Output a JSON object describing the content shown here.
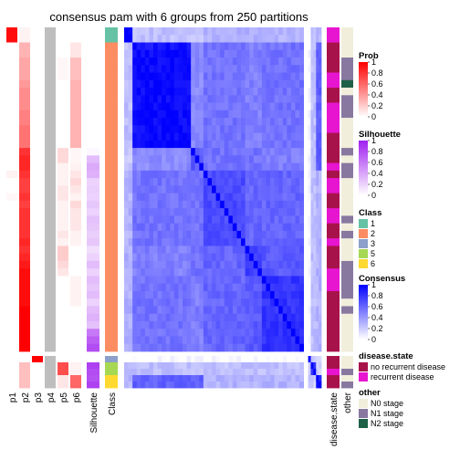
{
  "chart_data": {
    "type": "heatmap",
    "title": "consensus pam with 6 groups from 250 partitions",
    "n_samples": 48,
    "left_columns": [
      "p1",
      "p2",
      "p3",
      "p4",
      "p5",
      "p6",
      "Silhouette",
      "Class"
    ],
    "right_columns": [
      "disease.state",
      "other"
    ],
    "legends": {
      "prob": {
        "title": "Prob",
        "ticks": [
          "1",
          "0.8",
          "0.6",
          "0.4",
          "0.2",
          "0"
        ],
        "colors": [
          "#FF0000",
          "#ffffff"
        ]
      },
      "silhouette": {
        "title": "Silhouette",
        "ticks": [
          "1",
          "0.8",
          "0.6",
          "0.4",
          "0.2",
          "0"
        ],
        "colors": [
          "#A020F0",
          "#ffffff"
        ]
      },
      "class": {
        "title": "Class",
        "items": [
          {
            "label": "1",
            "color": "#66C2A5"
          },
          {
            "label": "2",
            "color": "#FC8D62"
          },
          {
            "label": "3",
            "color": "#8DA0CB"
          },
          {
            "label": "5",
            "color": "#A6D854"
          },
          {
            "label": "6",
            "color": "#FFD92F"
          }
        ]
      },
      "consensus": {
        "title": "Consensus",
        "ticks": [
          "1",
          "0.8",
          "0.6",
          "0.4",
          "0.2",
          "0"
        ],
        "colors": [
          "#0000FF",
          "#ffffff"
        ]
      },
      "disease_state": {
        "title": "disease.state",
        "items": [
          {
            "label": "no recurrent disease",
            "color": "#A8124A"
          },
          {
            "label": "recurrent disease",
            "color": "#E815D0"
          }
        ]
      },
      "other": {
        "title": "other",
        "items": [
          {
            "label": "N0 stage",
            "color": "#F1EFDC"
          },
          {
            "label": "N1 stage",
            "color": "#8878A0"
          },
          {
            "label": "N2 stage",
            "color": "#1F6048"
          }
        ]
      }
    },
    "class_order": [
      1,
      1,
      2,
      2,
      2,
      2,
      2,
      2,
      2,
      2,
      2,
      2,
      2,
      2,
      2,
      2,
      2,
      2,
      2,
      2,
      2,
      2,
      2,
      2,
      2,
      2,
      2,
      2,
      2,
      2,
      2,
      2,
      2,
      2,
      2,
      2,
      2,
      2,
      2,
      2,
      2,
      2,
      2,
      3,
      5,
      5,
      6,
      6
    ],
    "silhouette": [
      0,
      0,
      0,
      0,
      0,
      0,
      0,
      0,
      0,
      0,
      0,
      0,
      0,
      0,
      0,
      0,
      0.03,
      0.3,
      0.38,
      0.35,
      0.2,
      0.22,
      0.2,
      0.25,
      0.2,
      0.28,
      0.25,
      0.22,
      0.25,
      0.15,
      0.2,
      0.3,
      0.2,
      0.3,
      0.25,
      0.3,
      0.2,
      0.3,
      0.35,
      0.28,
      0.6,
      0.72,
      0.8,
      0,
      0.85,
      0.8,
      0.78,
      0.85
    ],
    "p1": [
      0.95,
      0.95,
      0,
      0,
      0,
      0,
      0,
      0,
      0,
      0,
      0,
      0,
      0,
      0,
      0,
      0,
      0,
      0,
      0,
      0.05,
      0,
      0,
      0.03,
      0,
      0,
      0,
      0,
      0,
      0,
      0,
      0,
      0,
      0,
      0,
      0,
      0,
      0,
      0,
      0,
      0,
      0,
      0,
      0,
      0,
      0,
      0,
      0,
      0
    ],
    "p2": [
      0.05,
      0.05,
      0.3,
      0.3,
      0.35,
      0.35,
      0.35,
      0.4,
      0.45,
      0.45,
      0.45,
      0.5,
      0.5,
      0.55,
      0.55,
      0.55,
      0.8,
      0.85,
      0.85,
      0.8,
      0.75,
      0.75,
      0.8,
      0.75,
      0.8,
      0.8,
      0.8,
      0.8,
      0.85,
      0.8,
      0.85,
      0.9,
      0.95,
      0.95,
      0.95,
      0.95,
      0.95,
      1,
      1,
      1,
      1,
      1,
      1,
      0,
      0.25,
      0.25,
      0.25,
      0.25
    ],
    "p3": [
      0,
      0,
      0,
      0,
      0,
      0,
      0,
      0,
      0,
      0,
      0,
      0,
      0,
      0,
      0,
      0,
      0,
      0,
      0,
      0,
      0,
      0,
      0,
      0,
      0,
      0,
      0,
      0,
      0,
      0,
      0,
      0,
      0,
      0,
      0,
      0,
      0,
      0,
      0,
      0,
      0,
      0,
      0,
      1,
      0,
      0,
      0,
      0
    ],
    "p5": [
      0,
      0,
      0,
      0,
      0.03,
      0.03,
      0.03,
      0,
      0,
      0,
      0,
      0,
      0,
      0,
      0,
      0,
      0.15,
      0.15,
      0.05,
      0.05,
      0.05,
      0.1,
      0.1,
      0.05,
      0.05,
      0.05,
      0.05,
      0.1,
      0.05,
      0.2,
      0.2,
      0.15,
      0.1,
      0,
      0,
      0,
      0,
      0,
      0,
      0,
      0,
      0,
      0,
      0,
      0.7,
      0.7,
      0.1,
      0.1
    ],
    "p6": [
      0,
      0,
      0.1,
      0.1,
      0.25,
      0.25,
      0.25,
      0.3,
      0.3,
      0.3,
      0.3,
      0.3,
      0.3,
      0.3,
      0.3,
      0.3,
      0.03,
      0.03,
      0.05,
      0.1,
      0.15,
      0.1,
      0.05,
      0.15,
      0.1,
      0.1,
      0.1,
      0.05,
      0.05,
      0,
      0,
      0,
      0,
      0.05,
      0.05,
      0.05,
      0.05,
      0,
      0,
      0,
      0,
      0,
      0,
      0,
      0.05,
      0.05,
      0.6,
      0.6
    ],
    "disease_state": [
      2,
      2,
      1,
      1,
      1,
      1,
      2,
      2,
      1,
      1,
      2,
      2,
      2,
      2,
      1,
      1,
      1,
      1,
      2,
      1,
      2,
      2,
      1,
      1,
      2,
      2,
      1,
      1,
      2,
      1,
      1,
      1,
      2,
      2,
      2,
      1,
      1,
      1,
      1,
      1,
      1,
      1,
      1,
      1,
      1,
      2,
      1,
      1
    ],
    "other": [
      1,
      1,
      1,
      1,
      2,
      2,
      2,
      3,
      1,
      2,
      2,
      2,
      1,
      1,
      1,
      1,
      2,
      1,
      2,
      2,
      1,
      1,
      1,
      1,
      1,
      2,
      1,
      2,
      1,
      1,
      1,
      2,
      2,
      2,
      2,
      2,
      1,
      2,
      1,
      1,
      1,
      1,
      1,
      1,
      1,
      2,
      1,
      2
    ]
  }
}
